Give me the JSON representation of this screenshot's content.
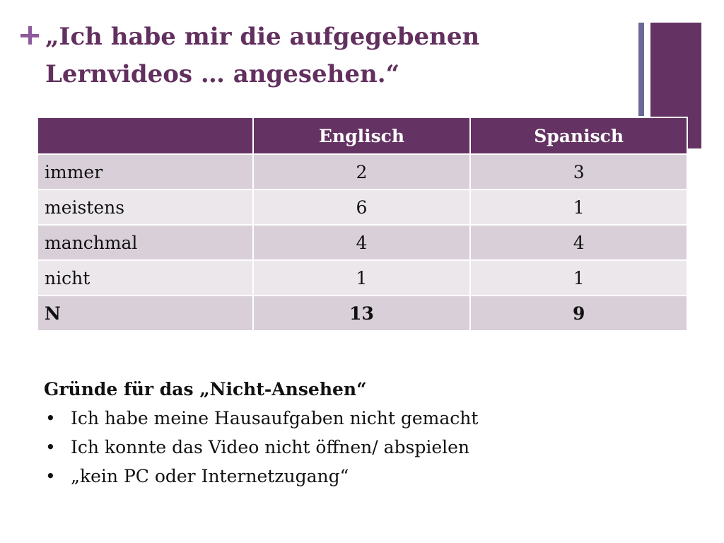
{
  "slide": {
    "plus_icon": "plus-icon",
    "title_line1": "„Ich habe mir die aufgegebenen",
    "title_line2": "Lernvideos … angesehen.“",
    "accent_color": "#643363",
    "secondary_accent_color": "#6c6898"
  },
  "table": {
    "headers": [
      "",
      "Englisch",
      "Spanisch"
    ],
    "rows": [
      {
        "label": "immer",
        "englisch": "2",
        "spanisch": "3"
      },
      {
        "label": "meistens",
        "englisch": "6",
        "spanisch": "1"
      },
      {
        "label": "manchmal",
        "englisch": "4",
        "spanisch": "4"
      },
      {
        "label": "nicht",
        "englisch": "1",
        "spanisch": "1"
      },
      {
        "label": "N",
        "englisch": "13",
        "spanisch": "9"
      }
    ]
  },
  "reasons": {
    "heading": "Gründe für das „Nicht-Ansehen“",
    "bullet": "•",
    "items": [
      "Ich habe meine Hausaufgaben nicht gemacht",
      "Ich konnte das Video nicht öffnen/ abspielen",
      "„kein PC oder Internetzugang“"
    ]
  }
}
